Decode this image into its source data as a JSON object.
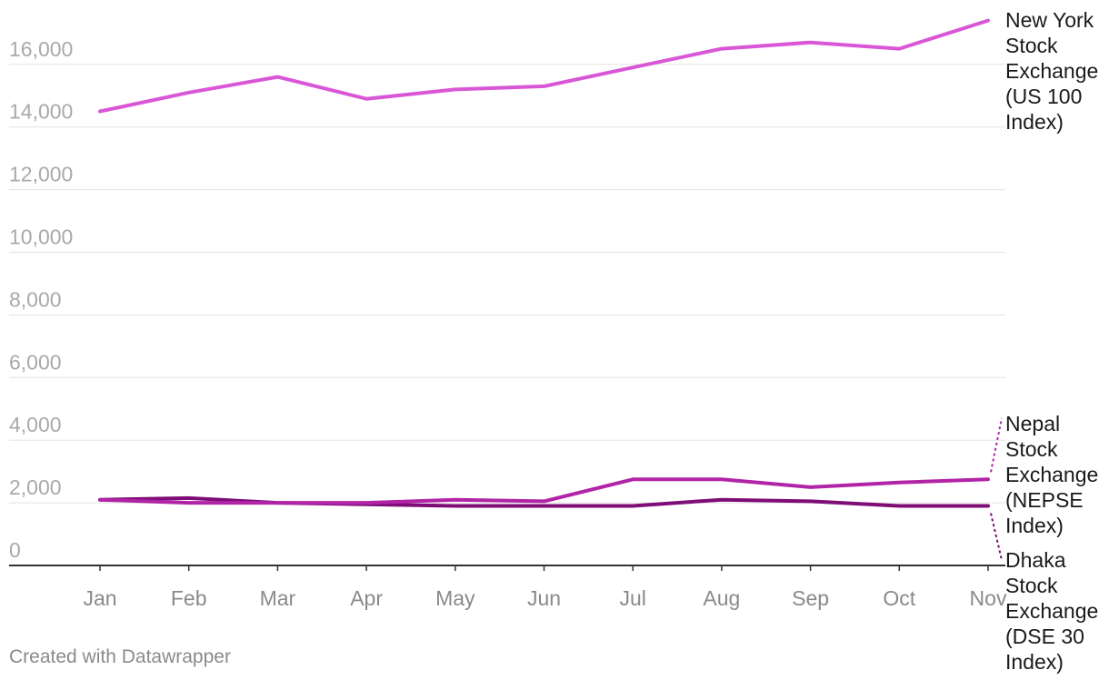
{
  "chart_data": {
    "type": "line",
    "title": "",
    "xlabel": "",
    "ylabel": "",
    "ylim": [
      0,
      16000
    ],
    "yticks": [
      0,
      2000,
      4000,
      6000,
      8000,
      10000,
      12000,
      14000,
      16000
    ],
    "ytick_labels": [
      "0",
      "2,000",
      "4,000",
      "6,000",
      "8,000",
      "10,000",
      "12,000",
      "14,000",
      "16,000"
    ],
    "grid": true,
    "categories": [
      "Jan",
      "Feb",
      "Mar",
      "Apr",
      "May",
      "Jun",
      "Jul",
      "Aug",
      "Sep",
      "Oct",
      "Nov"
    ],
    "series": [
      {
        "name": "New York Stock Exchange (US 100 Index)",
        "label_lines": [
          "New York",
          "Stock",
          "Exchange",
          "(US 100",
          "Index)"
        ],
        "color": "#d957d6",
        "values": [
          14500,
          15100,
          15600,
          14900,
          15200,
          15300,
          15900,
          16500,
          16700,
          16500,
          17400
        ]
      },
      {
        "name": "Nepal Stock Exchange (NEPSE Index)",
        "label_lines": [
          "Nepal",
          "Stock",
          "Exchange",
          "(NEPSE",
          "Index)"
        ],
        "color": "#b124a6",
        "values": [
          2100,
          2000,
          2000,
          2000,
          2100,
          2050,
          2750,
          2750,
          2500,
          2650,
          2750
        ]
      },
      {
        "name": "Dhaka Stock Exchange (DSE 30 Index)",
        "label_lines": [
          "Dhaka",
          "Stock",
          "Exchange",
          "(DSE 30",
          "Index)"
        ],
        "color": "#7e0d77",
        "values": [
          2100,
          2150,
          2000,
          1950,
          1900,
          1900,
          1900,
          2100,
          2050,
          1900,
          1900
        ]
      }
    ]
  },
  "footer": {
    "credit": "Created with Datawrapper"
  }
}
